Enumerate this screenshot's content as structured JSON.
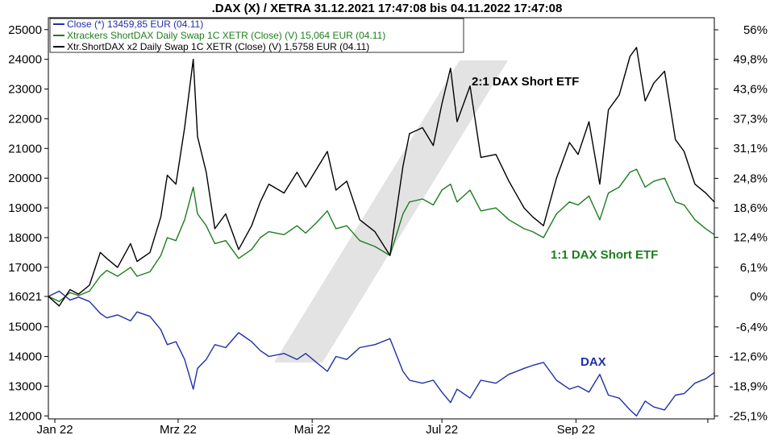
{
  "chart_data": {
    "type": "line",
    "title": ".DAX (X) / XETRA 31.12.2021 17:47:08 bis 04.11.2022 17:47:08",
    "x_tick_labels": [
      "Jan 22",
      "Mrz 22",
      "Mai 22",
      "Jul 22",
      "Sep 22"
    ],
    "x_tick_dates": [
      "2022-01-03",
      "2022-03-01",
      "2022-05-02",
      "2022-07-01",
      "2022-09-01"
    ],
    "x_range": [
      "2021-12-31",
      "2022-11-04"
    ],
    "y_left_ticks": [
      12000,
      13000,
      14000,
      15000,
      16021,
      17000,
      18000,
      19000,
      20000,
      21000,
      22000,
      23000,
      24000,
      25000
    ],
    "y_left_tick_labels": [
      "12000",
      "13000",
      "14000",
      "15000",
      "16021",
      "17000",
      "18000",
      "19000",
      "20000",
      "21000",
      "22000",
      "23000",
      "24000",
      "25000"
    ],
    "y_left_range": [
      11900,
      25400
    ],
    "y_right_ticks": [
      -25.1,
      -18.9,
      -12.6,
      -6.4,
      0,
      6.1,
      12.4,
      18.6,
      24.8,
      31.1,
      37.3,
      43.6,
      49.8,
      56
    ],
    "y_right_tick_labels": [
      "-25,1%",
      "-18,9%",
      "-12,6%",
      "-6,4%",
      "0%",
      "6,1%",
      "12,4%",
      "18,6%",
      "24,8%",
      "31,1%",
      "37,3%",
      "43,6%",
      "49,8%",
      "56%"
    ],
    "grid": false,
    "legend_position": "top-left",
    "legend": [
      {
        "label": "Close (*) 13459,85 EUR (04.11)",
        "color": "#1f2fa8"
      },
      {
        "label": "Xtrackers ShortDAX Daily Swap 1C XETR (Close) (V) 15,064 EUR (04.11)",
        "color": "#1e7d1e"
      },
      {
        "label": "Xtr.ShortDAX x2 Daily Swap 1C XETR (Close) (V) 1,5758 EUR (04.11)",
        "color": "#000000"
      }
    ],
    "annotations": [
      {
        "text": "2:1 DAX Short ETF",
        "color": "#000000"
      },
      {
        "text": "1:1 DAX Short ETF",
        "color": "#1e7d1e"
      },
      {
        "text": "DAX",
        "color": "#1f2fa8"
      }
    ],
    "y_units": "DAX level (left axis); percent change since start (right axis)",
    "series": [
      {
        "name": "DAX",
        "color": "#1f2fa8",
        "points": [
          [
            "2021-12-31",
            16021
          ],
          [
            "2022-01-05",
            16200
          ],
          [
            "2022-01-10",
            15900
          ],
          [
            "2022-01-14",
            16000
          ],
          [
            "2022-01-19",
            15850
          ],
          [
            "2022-01-24",
            15450
          ],
          [
            "2022-01-27",
            15300
          ],
          [
            "2022-02-01",
            15400
          ],
          [
            "2022-02-07",
            15200
          ],
          [
            "2022-02-10",
            15500
          ],
          [
            "2022-02-16",
            15350
          ],
          [
            "2022-02-21",
            14900
          ],
          [
            "2022-02-24",
            14400
          ],
          [
            "2022-02-28",
            14500
          ],
          [
            "2022-03-04",
            13900
          ],
          [
            "2022-03-08",
            12900
          ],
          [
            "2022-03-10",
            13600
          ],
          [
            "2022-03-14",
            13900
          ],
          [
            "2022-03-18",
            14400
          ],
          [
            "2022-03-23",
            14300
          ],
          [
            "2022-03-29",
            14800
          ],
          [
            "2022-04-04",
            14500
          ],
          [
            "2022-04-08",
            14200
          ],
          [
            "2022-04-12",
            14000
          ],
          [
            "2022-04-19",
            14100
          ],
          [
            "2022-04-25",
            13900
          ],
          [
            "2022-04-29",
            14100
          ],
          [
            "2022-05-04",
            13800
          ],
          [
            "2022-05-09",
            13500
          ],
          [
            "2022-05-13",
            14000
          ],
          [
            "2022-05-18",
            13900
          ],
          [
            "2022-05-24",
            14300
          ],
          [
            "2022-05-31",
            14400
          ],
          [
            "2022-06-07",
            14600
          ],
          [
            "2022-06-13",
            13500
          ],
          [
            "2022-06-16",
            13200
          ],
          [
            "2022-06-22",
            13100
          ],
          [
            "2022-06-27",
            13200
          ],
          [
            "2022-07-01",
            12800
          ],
          [
            "2022-07-05",
            12450
          ],
          [
            "2022-07-08",
            12900
          ],
          [
            "2022-07-14",
            12600
          ],
          [
            "2022-07-19",
            13200
          ],
          [
            "2022-07-26",
            13100
          ],
          [
            "2022-08-01",
            13400
          ],
          [
            "2022-08-08",
            13600
          ],
          [
            "2022-08-12",
            13700
          ],
          [
            "2022-08-17",
            13800
          ],
          [
            "2022-08-23",
            13200
          ],
          [
            "2022-08-29",
            12900
          ],
          [
            "2022-09-02",
            13000
          ],
          [
            "2022-09-07",
            12800
          ],
          [
            "2022-09-12",
            13400
          ],
          [
            "2022-09-16",
            12700
          ],
          [
            "2022-09-21",
            12600
          ],
          [
            "2022-09-26",
            12200
          ],
          [
            "2022-09-29",
            12000
          ],
          [
            "2022-10-03",
            12500
          ],
          [
            "2022-10-07",
            12300
          ],
          [
            "2022-10-12",
            12200
          ],
          [
            "2022-10-17",
            12700
          ],
          [
            "2022-10-21",
            12750
          ],
          [
            "2022-10-26",
            13100
          ],
          [
            "2022-10-31",
            13250
          ],
          [
            "2022-11-04",
            13460
          ]
        ]
      },
      {
        "name": "Xtrackers ShortDAX Daily Swap 1C",
        "color": "#1e7d1e",
        "points": [
          [
            "2021-12-31",
            16021
          ],
          [
            "2022-01-05",
            15850
          ],
          [
            "2022-01-10",
            16150
          ],
          [
            "2022-01-14",
            16050
          ],
          [
            "2022-01-19",
            16200
          ],
          [
            "2022-01-24",
            16700
          ],
          [
            "2022-01-27",
            16900
          ],
          [
            "2022-02-01",
            16700
          ],
          [
            "2022-02-07",
            17000
          ],
          [
            "2022-02-10",
            16700
          ],
          [
            "2022-02-16",
            16850
          ],
          [
            "2022-02-21",
            17400
          ],
          [
            "2022-02-24",
            18000
          ],
          [
            "2022-02-28",
            17900
          ],
          [
            "2022-03-04",
            18600
          ],
          [
            "2022-03-08",
            19700
          ],
          [
            "2022-03-10",
            18800
          ],
          [
            "2022-03-14",
            18400
          ],
          [
            "2022-03-18",
            17800
          ],
          [
            "2022-03-23",
            17900
          ],
          [
            "2022-03-29",
            17300
          ],
          [
            "2022-04-04",
            17600
          ],
          [
            "2022-04-08",
            18000
          ],
          [
            "2022-04-12",
            18200
          ],
          [
            "2022-04-19",
            18100
          ],
          [
            "2022-04-25",
            18400
          ],
          [
            "2022-04-29",
            18150
          ],
          [
            "2022-05-04",
            18500
          ],
          [
            "2022-05-09",
            18900
          ],
          [
            "2022-05-13",
            18300
          ],
          [
            "2022-05-18",
            18400
          ],
          [
            "2022-05-24",
            17900
          ],
          [
            "2022-05-31",
            17700
          ],
          [
            "2022-06-07",
            17400
          ],
          [
            "2022-06-13",
            18800
          ],
          [
            "2022-06-16",
            19200
          ],
          [
            "2022-06-22",
            19300
          ],
          [
            "2022-06-27",
            19100
          ],
          [
            "2022-07-01",
            19600
          ],
          [
            "2022-07-05",
            19800
          ],
          [
            "2022-07-08",
            19200
          ],
          [
            "2022-07-14",
            19600
          ],
          [
            "2022-07-19",
            18900
          ],
          [
            "2022-07-26",
            19000
          ],
          [
            "2022-08-01",
            18600
          ],
          [
            "2022-08-08",
            18300
          ],
          [
            "2022-08-12",
            18200
          ],
          [
            "2022-08-17",
            18000
          ],
          [
            "2022-08-23",
            18800
          ],
          [
            "2022-08-29",
            19200
          ],
          [
            "2022-09-02",
            19100
          ],
          [
            "2022-09-07",
            19400
          ],
          [
            "2022-09-12",
            18600
          ],
          [
            "2022-09-16",
            19500
          ],
          [
            "2022-09-21",
            19700
          ],
          [
            "2022-09-26",
            20200
          ],
          [
            "2022-09-29",
            20300
          ],
          [
            "2022-10-03",
            19700
          ],
          [
            "2022-10-07",
            19900
          ],
          [
            "2022-10-12",
            20000
          ],
          [
            "2022-10-17",
            19200
          ],
          [
            "2022-10-21",
            19100
          ],
          [
            "2022-10-26",
            18600
          ],
          [
            "2022-10-31",
            18300
          ],
          [
            "2022-11-04",
            18100
          ]
        ]
      },
      {
        "name": "Xtr.ShortDAX x2 Daily Swap 1C",
        "color": "#000000",
        "points": [
          [
            "2021-12-31",
            16021
          ],
          [
            "2022-01-05",
            15700
          ],
          [
            "2022-01-10",
            16250
          ],
          [
            "2022-01-14",
            16100
          ],
          [
            "2022-01-19",
            16400
          ],
          [
            "2022-01-24",
            17500
          ],
          [
            "2022-01-27",
            17300
          ],
          [
            "2022-02-01",
            17000
          ],
          [
            "2022-02-07",
            17800
          ],
          [
            "2022-02-10",
            17200
          ],
          [
            "2022-02-16",
            17500
          ],
          [
            "2022-02-21",
            18700
          ],
          [
            "2022-02-24",
            20100
          ],
          [
            "2022-02-28",
            19800
          ],
          [
            "2022-03-04",
            21700
          ],
          [
            "2022-03-08",
            24000
          ],
          [
            "2022-03-10",
            21400
          ],
          [
            "2022-03-14",
            20200
          ],
          [
            "2022-03-18",
            18300
          ],
          [
            "2022-03-23",
            18800
          ],
          [
            "2022-03-29",
            17600
          ],
          [
            "2022-04-04",
            18400
          ],
          [
            "2022-04-08",
            19200
          ],
          [
            "2022-04-12",
            19800
          ],
          [
            "2022-04-19",
            19500
          ],
          [
            "2022-04-25",
            20200
          ],
          [
            "2022-04-29",
            19700
          ],
          [
            "2022-05-04",
            20300
          ],
          [
            "2022-05-09",
            20900
          ],
          [
            "2022-05-13",
            19600
          ],
          [
            "2022-05-18",
            19900
          ],
          [
            "2022-05-24",
            18600
          ],
          [
            "2022-05-31",
            18200
          ],
          [
            "2022-06-07",
            17400
          ],
          [
            "2022-06-13",
            20400
          ],
          [
            "2022-06-16",
            21500
          ],
          [
            "2022-06-22",
            21700
          ],
          [
            "2022-06-27",
            21100
          ],
          [
            "2022-07-01",
            22500
          ],
          [
            "2022-07-05",
            23700
          ],
          [
            "2022-07-08",
            21900
          ],
          [
            "2022-07-14",
            23100
          ],
          [
            "2022-07-19",
            20700
          ],
          [
            "2022-07-26",
            20800
          ],
          [
            "2022-08-01",
            19900
          ],
          [
            "2022-08-08",
            19000
          ],
          [
            "2022-08-12",
            18700
          ],
          [
            "2022-08-17",
            18400
          ],
          [
            "2022-08-23",
            20000
          ],
          [
            "2022-08-29",
            21200
          ],
          [
            "2022-09-02",
            20800
          ],
          [
            "2022-09-07",
            21900
          ],
          [
            "2022-09-12",
            19800
          ],
          [
            "2022-09-16",
            22300
          ],
          [
            "2022-09-21",
            22800
          ],
          [
            "2022-09-26",
            24100
          ],
          [
            "2022-09-29",
            24400
          ],
          [
            "2022-10-03",
            22600
          ],
          [
            "2022-10-07",
            23200
          ],
          [
            "2022-10-12",
            23600
          ],
          [
            "2022-10-17",
            21300
          ],
          [
            "2022-10-21",
            20900
          ],
          [
            "2022-10-26",
            19800
          ],
          [
            "2022-10-31",
            19500
          ],
          [
            "2022-11-04",
            19200
          ]
        ]
      }
    ]
  }
}
